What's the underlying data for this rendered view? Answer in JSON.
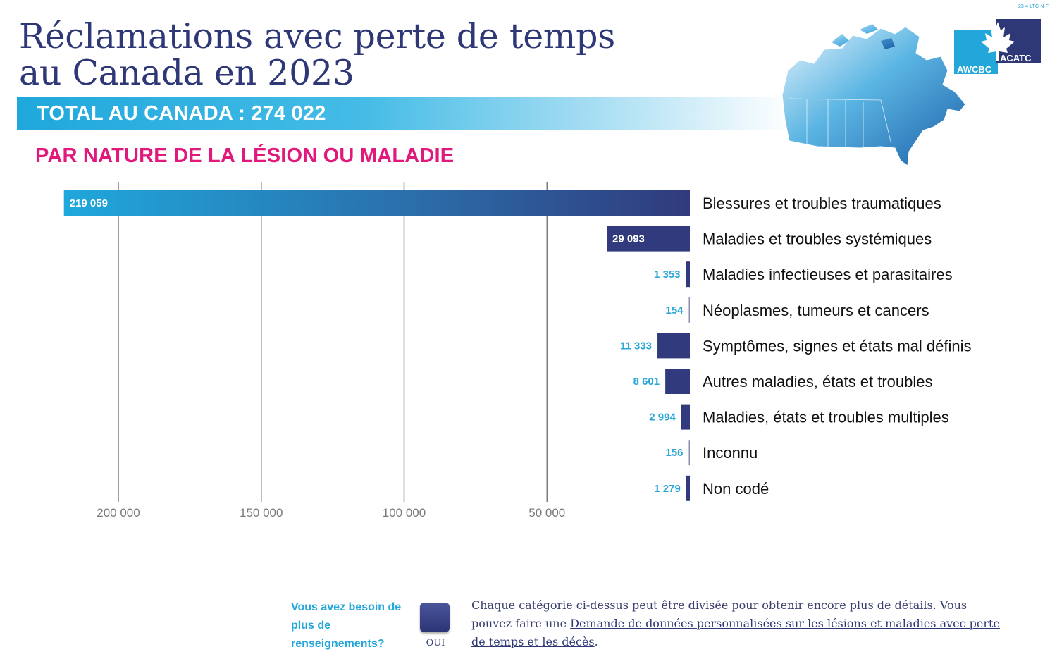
{
  "doc_code": "23-4-LTC-N-F",
  "title_line1": "Réclamations avec perte de temps",
  "title_line2": "au Canada en 2023",
  "total_label": "TOTAL AU CANADA : 274 022",
  "subtitle": "PAR NATURE DE LA LÉSION OU MALADIE",
  "logo": {
    "left_text": "AWCBC",
    "right_text": "ACATC"
  },
  "colors": {
    "title": "#2f3877",
    "subtitle": "#e0197d",
    "accent": "#23a6d9",
    "bar": "#303a7c"
  },
  "chart_data": {
    "type": "bar",
    "orientation": "horizontal",
    "x_reversed": true,
    "categories": [
      "Blessures et troubles traumatiques",
      "Maladies et troubles systémiques",
      "Maladies infectieuses et parasitaires",
      "Néoplasmes, tumeurs et cancers",
      "Symptômes, signes et états mal définis",
      "Autres maladies, états et troubles",
      "Maladies, états et troubles multiples",
      "Inconnu",
      "Non codé"
    ],
    "values": [
      219059,
      29093,
      1353,
      154,
      11333,
      8601,
      2994,
      156,
      1279
    ],
    "value_labels": [
      "219 059",
      "29 093",
      "1 353",
      "154",
      "11 333",
      "8 601",
      "2 994",
      "156",
      "1 279"
    ],
    "ticks": [
      200000,
      150000,
      100000,
      50000
    ],
    "tick_labels": [
      "200 000",
      "150 000",
      "100 000",
      "50 000"
    ],
    "xlim": [
      0,
      220000
    ],
    "title": "PAR NATURE DE LA LÉSION OU MALADIE"
  },
  "footer": {
    "question": "Vous avez besoin de plus de renseignements?",
    "button_label": "OUI",
    "text_before": "Chaque catégorie ci-dessus peut être divisée pour obtenir encore plus de détails. Vous pouvez faire une ",
    "link_text": "Demande de données personnalisées sur les lésions et maladies avec perte de temps et les décès",
    "text_after": "."
  }
}
